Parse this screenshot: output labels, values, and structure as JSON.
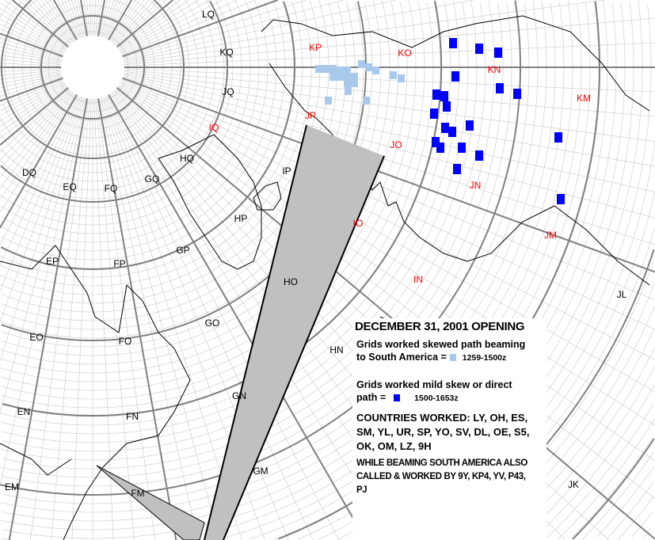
{
  "map": {
    "grid_labels_black": [
      "LQ",
      "KQ",
      "JQ",
      "HQ",
      "GQ",
      "FQ",
      "EQ",
      "DQ",
      "EP",
      "FP",
      "GP",
      "HP",
      "IP",
      "HO",
      "GO",
      "FO",
      "EO",
      "HN",
      "GN",
      "FN",
      "EN",
      "GM",
      "FM",
      "EM",
      "JL",
      "JK"
    ],
    "grid_labels_red": [
      "KP",
      "KO",
      "KN",
      "KM",
      "IQ",
      "JP",
      "JO",
      "JN",
      "JM",
      "IO",
      "IN"
    ],
    "colors": {
      "skewed_path": "#a9c9ec",
      "direct_path": "#0000ff",
      "beam": "#c0c0c0",
      "label_red": "#ff0000"
    }
  },
  "legend": {
    "title": "DECEMBER 31, 2001 OPENING",
    "skewed_text_1": "Grids worked skewed path beaming",
    "skewed_text_2": "to South America =",
    "skewed_range": "1259-1500z",
    "direct_text_1": "Grids worked mild skew or direct",
    "direct_text_2": "path =",
    "direct_range": "1500-1653z",
    "countries_1": "COUNTRIES WORKED: LY, OH, ES,",
    "countries_2": "SM, YL, UR, SP, YO, SV, DL, OE, S5,",
    "countries_3": "OK, OM, LZ, 9H",
    "also_1": "WHILE BEAMING SOUTH AMERICA ALSO",
    "also_2": "CALLED & WORKED BY 9Y, KP4, YV, P43,",
    "also_3": "PJ"
  }
}
